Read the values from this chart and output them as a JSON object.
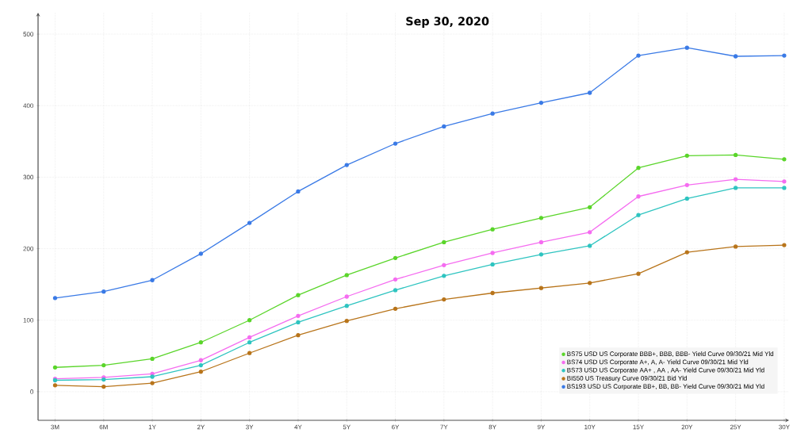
{
  "chart_data": {
    "type": "line",
    "title": "Sep 30, 2020",
    "categories": [
      "3M",
      "6M",
      "1Y",
      "2Y",
      "3Y",
      "4Y",
      "5Y",
      "6Y",
      "7Y",
      "8Y",
      "9Y",
      "10Y",
      "15Y",
      "20Y",
      "25Y",
      "30Y"
    ],
    "series": [
      {
        "name": "BS75 USD US Corporate BBB+, BBB, BBB- Yield Curve 09/30/21 Mid Yld",
        "color": "#5ad52a",
        "values": [
          34,
          37,
          46,
          69,
          100,
          135,
          163,
          187,
          209,
          227,
          243,
          258,
          313,
          330,
          331,
          325
        ]
      },
      {
        "name": "BS74 USD US Corporate A+, A, A- Yield Curve 09/30/21 Mid Yld",
        "color": "#f56cf0",
        "values": [
          18,
          20,
          25,
          44,
          76,
          106,
          133,
          157,
          177,
          194,
          209,
          223,
          273,
          289,
          297,
          294
        ]
      },
      {
        "name": "BS73 USD US Corporate AA+ , AA , AA- Yield Curve 09/30/21 Mid Yld",
        "color": "#2ec4c0",
        "values": [
          16,
          17,
          21,
          37,
          69,
          97,
          120,
          142,
          162,
          178,
          192,
          204,
          247,
          270,
          285,
          285
        ]
      },
      {
        "name": "BI550 US Treasury Curve 09/30/21 Bid Yld",
        "color": "#b8741a",
        "values": [
          9,
          7,
          12,
          28,
          54,
          79,
          99,
          116,
          129,
          138,
          145,
          152,
          165,
          195,
          203,
          205
        ]
      },
      {
        "name": "BS193 USD US Corporate BB+, BB, BB- Yield Curve 09/30/21 Mid Yld",
        "color": "#3a7ae6",
        "values": [
          131,
          140,
          156,
          193,
          236,
          280,
          317,
          347,
          371,
          389,
          404,
          418,
          470,
          481,
          469,
          470
        ]
      }
    ],
    "ylim": [
      -40,
      530
    ],
    "yticks": [
      0,
      100,
      200,
      300,
      400,
      500
    ],
    "grid": true,
    "legend": "bottom right",
    "marker": "circle",
    "line_style": "solid"
  }
}
